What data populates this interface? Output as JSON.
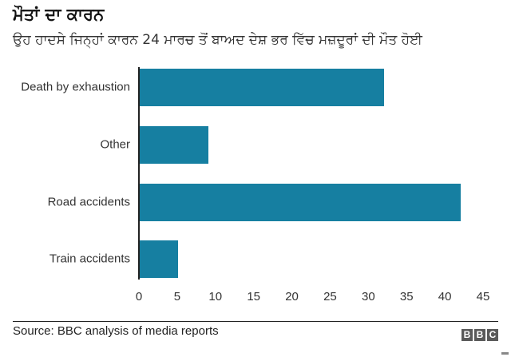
{
  "header": {
    "title": "ਮੌਤਾਂ ਦਾ ਕਾਰਨ",
    "subtitle": "ਉਹ ਹਾਦਸੇ ਜਿਨ੍ਹਾਂ ਕਾਰਨ 24 ਮਾਰਚ ਤੋਂ ਬਾਅਦ ਦੇਸ਼ ਭਰ ਵਿੱਚ ਮਜ਼ਦੂਰਾਂ ਦੀ ਮੌਤ ਹੋਈ"
  },
  "footer": {
    "source": "Source: BBC analysis of media reports",
    "logo_letters": [
      "B",
      "B",
      "C"
    ]
  },
  "colors": {
    "bar": "#167fa1",
    "axis": "#222222",
    "logo_box": "#5a5a5a"
  },
  "chart_data": {
    "type": "bar",
    "orientation": "horizontal",
    "title": "ਮੌਤਾਂ ਦਾ ਕਾਰਨ",
    "subtitle": "ਉਹ ਹਾਦਸੇ ਜਿਨ੍ਹਾਂ ਕਾਰਨ 24 ਮਾਰਚ ਤੋਂ ਬਾਅਦ ਦੇਸ਼ ਭਰ ਵਿੱਚ ਮਜ਼ਦੂਰਾਂ ਦੀ ਮੌਤ ਹੋਈ",
    "categories": [
      "Death by exhaustion",
      "Other",
      "Road accidents",
      "Train accidents"
    ],
    "values": [
      32,
      9,
      42,
      5
    ],
    "xlabel": "",
    "ylabel": "",
    "xlim": [
      0,
      45
    ],
    "xticks": [
      "0",
      "5",
      "10",
      "15",
      "20",
      "25",
      "30",
      "35",
      "40",
      "45"
    ],
    "grid": false,
    "legend": null,
    "source": "Source: BBC analysis of media reports"
  }
}
